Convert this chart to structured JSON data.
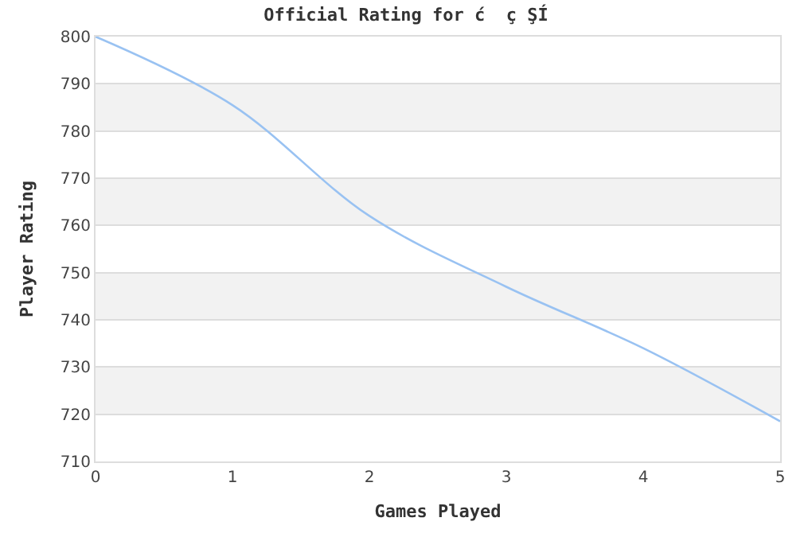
{
  "chart_data": {
    "type": "line",
    "title": "Official Rating for ć  ç ŞÍ",
    "xlabel": "Games Played",
    "ylabel": "Player Rating",
    "x": [
      0,
      1,
      2,
      3,
      4,
      5
    ],
    "series": [
      {
        "color": "#99c2f2",
        "values": [
          800,
          785.5,
          762,
          747,
          734,
          718.5
        ]
      }
    ],
    "xlim": [
      0,
      5
    ],
    "xticks": [
      0,
      1,
      2,
      3,
      4,
      5
    ],
    "ylim": [
      710,
      800
    ],
    "yticks": [
      710,
      720,
      730,
      740,
      750,
      760,
      770,
      780,
      790,
      800
    ],
    "grid": "y",
    "marker": "none",
    "line_style": "solid",
    "bands": [
      {
        "axis": "y",
        "from": 780,
        "to": 790,
        "color": "#f2f2f2"
      },
      {
        "axis": "y",
        "from": 760,
        "to": 770,
        "color": "#f2f2f2"
      },
      {
        "axis": "y",
        "from": 740,
        "to": 750,
        "color": "#f2f2f2"
      },
      {
        "axis": "y",
        "from": 720,
        "to": 730,
        "color": "#f2f2f2"
      }
    ]
  }
}
